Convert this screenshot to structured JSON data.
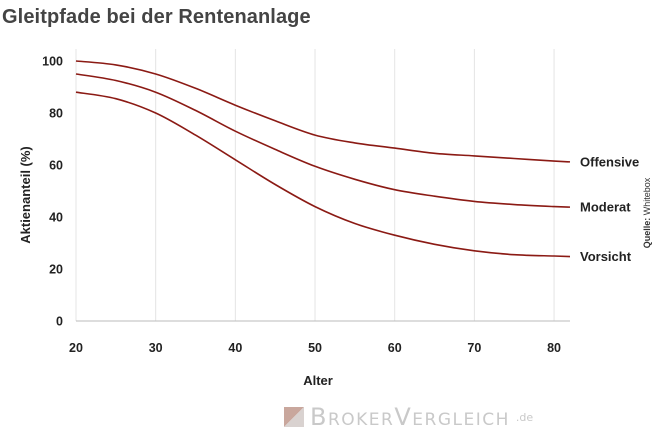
{
  "header": {
    "title": "Gleitpfade bei der Rentenanlage"
  },
  "chart_data": {
    "type": "line",
    "title": "Gleitpfade bei der Rentenanlage",
    "xlabel": "Alter",
    "ylabel": "Aktienanteil (%)",
    "xlim": [
      20,
      82
    ],
    "ylim": [
      0,
      100
    ],
    "xticks": [
      20,
      30,
      40,
      50,
      60,
      70,
      80
    ],
    "yticks": [
      0,
      20,
      40,
      60,
      80,
      100
    ],
    "grid": "vertical",
    "line_color": "#8b1a14",
    "x": [
      20,
      25,
      30,
      35,
      40,
      45,
      50,
      55,
      60,
      65,
      70,
      75,
      80,
      82
    ],
    "series": [
      {
        "name": "Offensive",
        "values": [
          100,
          98.5,
          95,
          89.5,
          83,
          77,
          71.5,
          68.5,
          66.5,
          64.5,
          63.5,
          62.5,
          61.5,
          61.2
        ]
      },
      {
        "name": "Moderat",
        "values": [
          95,
          92.5,
          88,
          81,
          73,
          66,
          59.5,
          54.5,
          50.5,
          48,
          46,
          44.8,
          44,
          43.8
        ]
      },
      {
        "name": "Vorsicht",
        "values": [
          88,
          85.5,
          80,
          71.5,
          62,
          52.5,
          44,
          37.5,
          33,
          29.5,
          27,
          25.5,
          25,
          24.8
        ]
      }
    ],
    "source_label": "Quelle:",
    "source_value": "Whitebox"
  },
  "watermark": {
    "brand": "BrokerVergleich",
    "tld": ".de"
  }
}
